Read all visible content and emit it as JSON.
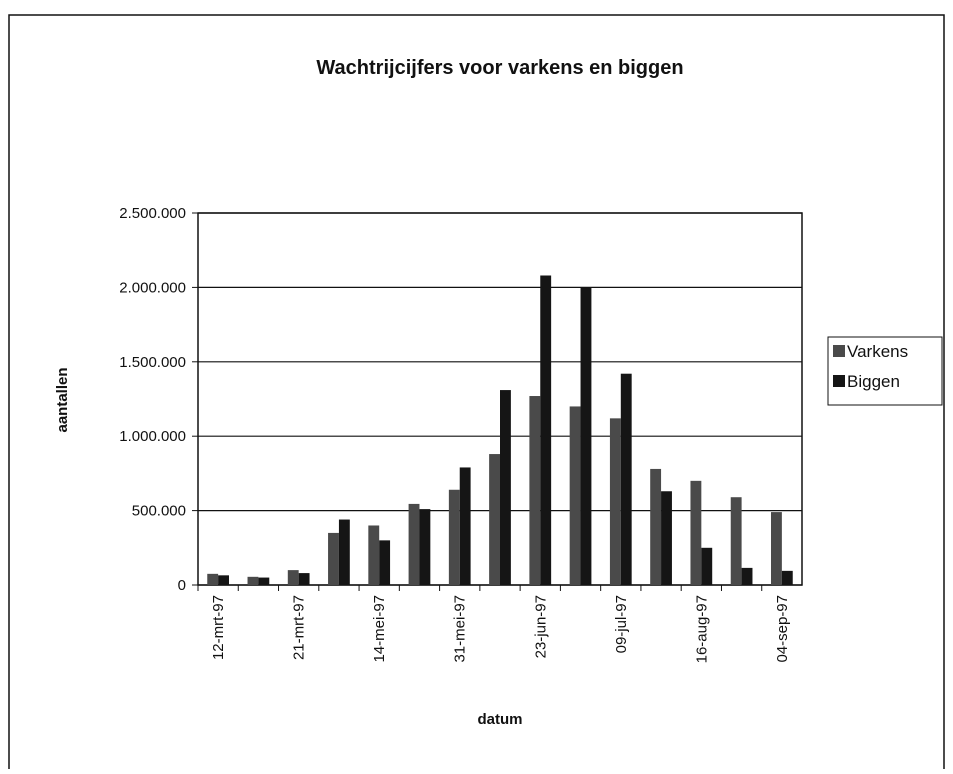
{
  "chart_data": {
    "type": "bar",
    "title": "Wachtrijcijfers voor varkens en biggen",
    "xlabel": "datum",
    "ylabel": "aantallen",
    "categories": [
      "12-mrt-97",
      null,
      "21-mrt-97",
      null,
      "14-mei-97",
      null,
      "31-mei-97",
      null,
      "23-jun-97",
      null,
      "09-jul-97",
      null,
      "16-aug-97",
      null,
      "04-sep-97"
    ],
    "series": [
      {
        "name": "Varkens",
        "color": "#4a4a4a",
        "values": [
          75000,
          55000,
          100000,
          350000,
          400000,
          545000,
          640000,
          880000,
          1270000,
          1200000,
          1120000,
          780000,
          700000,
          590000,
          490000
        ]
      },
      {
        "name": "Biggen",
        "color": "#151515",
        "values": [
          65000,
          50000,
          80000,
          440000,
          300000,
          510000,
          790000,
          1310000,
          2080000,
          2000000,
          1420000,
          630000,
          250000,
          115000,
          95000
        ]
      }
    ],
    "ylim": [
      0,
      2500000
    ],
    "yticks": [
      0,
      {
        "value": 500000,
        "label": "500.000"
      },
      {
        "value": 1000000,
        "label": "1.000.000"
      },
      {
        "value": 1500000,
        "label": "1.500.000"
      },
      {
        "value": 2000000,
        "label": "2.000.000"
      },
      {
        "value": 2500000,
        "label": "2.500.000"
      }
    ],
    "grid": true,
    "legend": "right"
  }
}
